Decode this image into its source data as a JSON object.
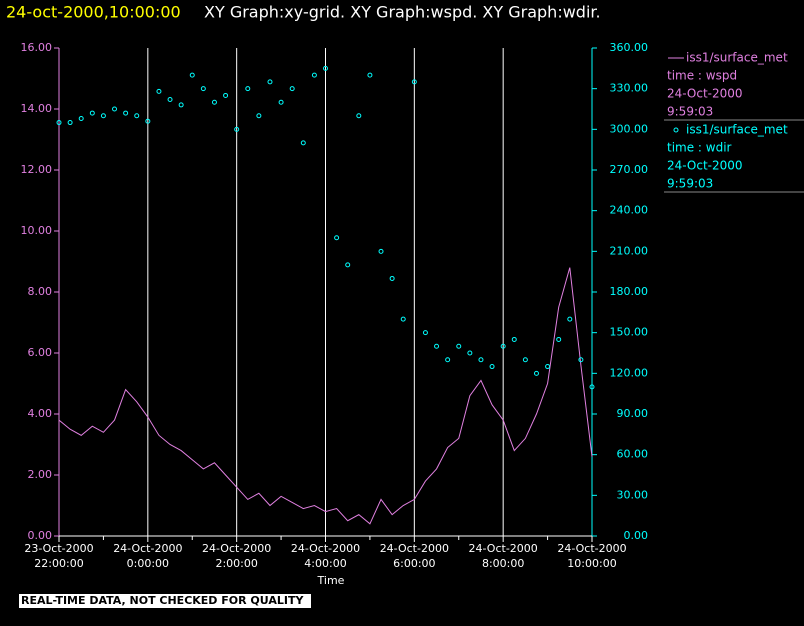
{
  "chart_data": {
    "type": "line+scatter",
    "title_time": "24-oct-2000,10:00:00",
    "title": "XY Graph:xy-grid.  XY Graph:wspd.  XY Graph:wdir.",
    "x_label": "Time",
    "footer": "REAL-TIME DATA, NOT CHECKED FOR QUALITY",
    "xlim": [
      "2000-10-23T22:00",
      "2000-10-24T10:00"
    ],
    "xticks": [
      {
        "value": "2000-10-23T22:00",
        "label": [
          "23-Oct-2000",
          "22:00:00"
        ]
      },
      {
        "value": "2000-10-24T00:00",
        "label": [
          "24-Oct-2000",
          "0:00:00"
        ]
      },
      {
        "value": "2000-10-24T02:00",
        "label": [
          "24-Oct-2000",
          "2:00:00"
        ]
      },
      {
        "value": "2000-10-24T04:00",
        "label": [
          "24-Oct-2000",
          "4:00:00"
        ]
      },
      {
        "value": "2000-10-24T06:00",
        "label": [
          "24-Oct-2000",
          "6:00:00"
        ]
      },
      {
        "value": "2000-10-24T08:00",
        "label": [
          "24-Oct-2000",
          "8:00:00"
        ]
      },
      {
        "value": "2000-10-24T10:00",
        "label": [
          "24-Oct-2000",
          "10:00:00"
        ]
      }
    ],
    "ylim": [
      0,
      16
    ],
    "yticks": [
      {
        "value": 0,
        "label": "0.00"
      },
      {
        "value": 2,
        "label": "2.00"
      },
      {
        "value": 4,
        "label": "4.00"
      },
      {
        "value": 6,
        "label": "6.00"
      },
      {
        "value": 8,
        "label": "8.00"
      },
      {
        "value": 10,
        "label": "10.00"
      },
      {
        "value": 12,
        "label": "12.00"
      },
      {
        "value": 14,
        "label": "14.00"
      },
      {
        "value": 16,
        "label": "16.00"
      }
    ],
    "y2lim": [
      0,
      360
    ],
    "y2ticks": [
      {
        "value": 0,
        "label": "0.00"
      },
      {
        "value": 30,
        "label": "30.00"
      },
      {
        "value": 60,
        "label": "60.00"
      },
      {
        "value": 90,
        "label": "90.00"
      },
      {
        "value": 120,
        "label": "120.00"
      },
      {
        "value": 150,
        "label": "150.00"
      },
      {
        "value": 180,
        "label": "180.00"
      },
      {
        "value": 210,
        "label": "210.00"
      },
      {
        "value": 240,
        "label": "240.00"
      },
      {
        "value": 270,
        "label": "270.00"
      },
      {
        "value": 300,
        "label": "300.00"
      },
      {
        "value": 330,
        "label": "330.00"
      },
      {
        "value": 360,
        "label": "360.00"
      }
    ],
    "grid": true,
    "x": [
      "2000-10-23T22:00",
      "2000-10-23T22:15",
      "2000-10-23T22:30",
      "2000-10-23T22:45",
      "2000-10-23T23:00",
      "2000-10-23T23:15",
      "2000-10-23T23:30",
      "2000-10-23T23:45",
      "2000-10-24T00:00",
      "2000-10-24T00:15",
      "2000-10-24T00:30",
      "2000-10-24T00:45",
      "2000-10-24T01:00",
      "2000-10-24T01:15",
      "2000-10-24T01:30",
      "2000-10-24T01:45",
      "2000-10-24T02:00",
      "2000-10-24T02:15",
      "2000-10-24T02:30",
      "2000-10-24T02:45",
      "2000-10-24T03:00",
      "2000-10-24T03:15",
      "2000-10-24T03:30",
      "2000-10-24T03:45",
      "2000-10-24T04:00",
      "2000-10-24T04:15",
      "2000-10-24T04:30",
      "2000-10-24T04:45",
      "2000-10-24T05:00",
      "2000-10-24T05:15",
      "2000-10-24T05:30",
      "2000-10-24T05:45",
      "2000-10-24T06:00",
      "2000-10-24T06:15",
      "2000-10-24T06:30",
      "2000-10-24T06:45",
      "2000-10-24T07:00",
      "2000-10-24T07:15",
      "2000-10-24T07:30",
      "2000-10-24T07:45",
      "2000-10-24T08:00",
      "2000-10-24T08:15",
      "2000-10-24T08:30",
      "2000-10-24T08:45",
      "2000-10-24T09:00",
      "2000-10-24T09:15",
      "2000-10-24T09:30",
      "2000-10-24T09:45",
      "2000-10-24T10:00"
    ],
    "series": [
      {
        "name": "iss1/surface_met",
        "legend_details": [
          "time : wspd",
          "24-Oct-2000",
          "9:59:03"
        ],
        "color": "#e080e0",
        "kind": "line",
        "values": [
          3.8,
          3.5,
          3.3,
          3.6,
          3.4,
          3.8,
          4.8,
          4.4,
          3.9,
          3.3,
          3.0,
          2.8,
          2.5,
          2.2,
          2.4,
          2.0,
          1.6,
          1.2,
          1.4,
          1.0,
          1.3,
          1.1,
          0.9,
          1.0,
          0.8,
          0.9,
          0.5,
          0.7,
          0.4,
          1.2,
          0.7,
          1.0,
          1.2,
          1.8,
          2.2,
          2.9,
          3.2,
          4.6,
          5.1,
          4.3,
          3.8,
          2.8,
          3.2,
          4.0,
          5.0,
          7.5,
          8.8,
          5.6,
          2.6
        ]
      },
      {
        "name": "iss1/surface_met",
        "legend_details": [
          "time : wdir",
          "24-Oct-2000",
          "9:59:03"
        ],
        "color": "#00ffff",
        "kind": "scatter",
        "axis": "y2",
        "values": [
          305,
          305,
          308,
          312,
          310,
          315,
          312,
          310,
          306,
          328,
          322,
          318,
          340,
          330,
          320,
          325,
          300,
          330,
          310,
          335,
          320,
          330,
          290,
          340,
          345,
          220,
          200,
          310,
          340,
          210,
          190,
          160,
          335,
          150,
          140,
          130,
          140,
          135,
          130,
          125,
          140,
          145,
          130,
          120,
          125,
          145,
          160,
          130,
          110
        ]
      }
    ]
  }
}
